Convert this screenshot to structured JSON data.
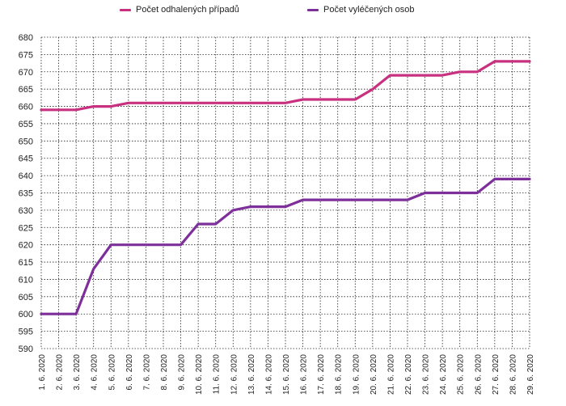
{
  "chart_data": {
    "type": "line",
    "categories": [
      "1. 6. 2020",
      "2. 6. 2020",
      "3. 6. 2020",
      "4. 6. 2020",
      "5. 6. 2020",
      "6. 6. 2020",
      "7. 6. 2020",
      "8. 6. 2020",
      "9. 6. 2020",
      "10. 6. 2020",
      "11. 6. 2020",
      "12. 6. 2020",
      "13. 6. 2020",
      "14. 6. 2020",
      "15. 6. 2020",
      "16. 6. 2020",
      "17. 6. 2020",
      "18. 6. 2020",
      "19. 6. 2020",
      "20. 6. 2020",
      "21. 6. 2020",
      "22. 6. 2020",
      "23. 6. 2020",
      "24. 6. 2020",
      "25. 6. 2020",
      "26. 6. 2020",
      "27. 6. 2020",
      "28. 6. 2020",
      "29. 6. 2020"
    ],
    "series": [
      {
        "name": "Počet odhalených případů",
        "color": "#c8317f",
        "values": [
          659,
          659,
          659,
          660,
          660,
          661,
          661,
          661,
          661,
          661,
          661,
          661,
          661,
          661,
          661,
          662,
          662,
          662,
          662,
          665,
          669,
          669,
          669,
          669,
          670,
          670,
          673,
          673,
          673
        ]
      },
      {
        "name": "Počet vyléčených osob",
        "color": "#7d2f9a",
        "values": [
          600,
          600,
          600,
          613,
          620,
          620,
          620,
          620,
          620,
          626,
          626,
          630,
          631,
          631,
          631,
          633,
          633,
          633,
          633,
          633,
          633,
          633,
          635,
          635,
          635,
          635,
          639,
          639,
          639
        ]
      }
    ],
    "ylim": [
      590,
      680
    ],
    "yticks": [
      590,
      595,
      600,
      605,
      610,
      615,
      620,
      625,
      630,
      635,
      640,
      645,
      650,
      655,
      660,
      665,
      670,
      675,
      680
    ],
    "grid": true,
    "legend_position": "top"
  }
}
